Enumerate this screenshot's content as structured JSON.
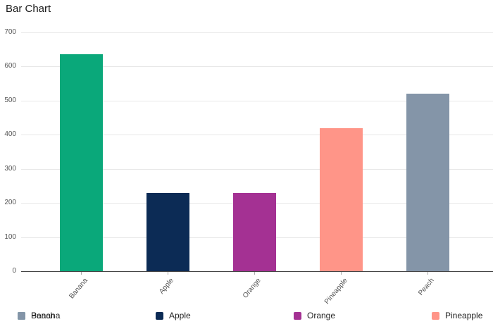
{
  "chart_data": {
    "type": "bar",
    "title": "Bar Chart",
    "categories": [
      "Banana",
      "Apple",
      "Orange",
      "Pineapple",
      "Peach"
    ],
    "values": [
      635,
      230,
      230,
      420,
      520
    ],
    "colors": [
      "#0aa87a",
      "#0c2b55",
      "#a43193",
      "#ff9588",
      "#8495a8"
    ],
    "xlabel": "",
    "ylabel": "",
    "ylim": [
      0,
      700
    ],
    "yticks": [
      0,
      100,
      200,
      300,
      400,
      500,
      600,
      700
    ],
    "grid": true,
    "legend": {
      "position": "bottom",
      "slots": [
        {
          "entries": [
            {
              "label": "Banana",
              "color": "#0aa87a"
            },
            {
              "label": "Peach",
              "color": "#8495a8"
            }
          ]
        },
        {
          "entries": [
            {
              "label": "Apple",
              "color": "#0c2b55"
            }
          ]
        },
        {
          "entries": [
            {
              "label": "Orange",
              "color": "#a43193"
            }
          ]
        },
        {
          "entries": [
            {
              "label": "Pineapple",
              "color": "#ff9588"
            }
          ]
        }
      ]
    },
    "style_colors": {
      "gridline": "#e8e8e8",
      "zero_axis": "#444444",
      "tick_text": "#555555",
      "title_text": "#1a1a1a",
      "legend_text": "#222222"
    }
  }
}
